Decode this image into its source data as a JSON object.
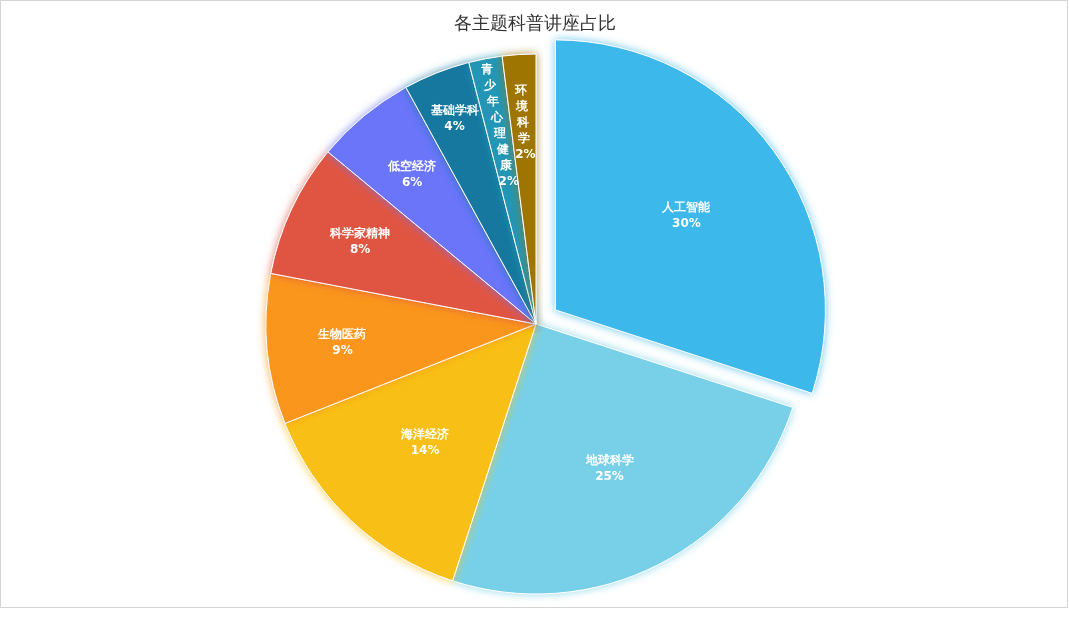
{
  "chart_data": {
    "type": "pie",
    "title": "各主题科普讲座占比",
    "categories": [
      "人工智能",
      "地球科学",
      "海洋经济",
      "生物医药",
      "科学家精神",
      "低空经济",
      "基础学科",
      "青少年心理健康",
      "环境科学"
    ],
    "values": [
      30,
      25,
      14,
      9,
      8,
      6,
      4,
      2,
      2
    ],
    "colors": [
      "#3db8eb",
      "#78d0e8",
      "#f8c018",
      "#fa961e",
      "#e05442",
      "#6a74fa",
      "#14789e",
      "#2496b4",
      "#9e7400"
    ],
    "value_labels": [
      "30%",
      "25%",
      "14%",
      "9%",
      "8%",
      "6%",
      "4%",
      "2%",
      "2%"
    ]
  }
}
